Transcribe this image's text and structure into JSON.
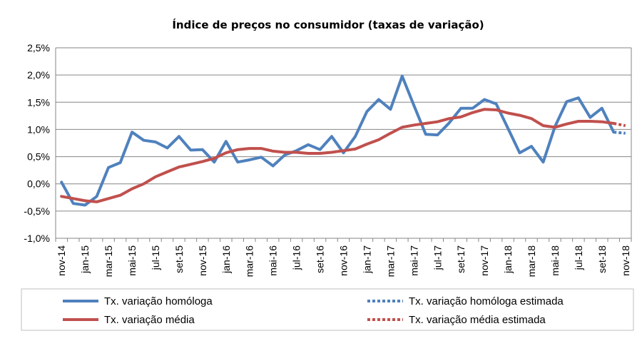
{
  "chart_data": {
    "type": "line",
    "title": "Índice de preços no consumidor  (taxas  de variação)",
    "xlabel": "",
    "ylabel": "",
    "ylim": [
      -1.0,
      2.5
    ],
    "y_ticks": [
      "2,5%",
      "2,0%",
      "1,5%",
      "1,0%",
      "0,5%",
      "0,0%",
      "-0,5%",
      "-1,0%"
    ],
    "y_tick_values": [
      2.5,
      2.0,
      1.5,
      1.0,
      0.5,
      0.0,
      -0.5,
      -1.0
    ],
    "grid": "horizontal",
    "legend_position": "bottom",
    "x": [
      "nov-14",
      "dez-14",
      "jan-15",
      "fev-15",
      "mar-15",
      "abr-15",
      "mai-15",
      "jun-15",
      "jul-15",
      "ago-15",
      "set-15",
      "out-15",
      "nov-15",
      "dez-15",
      "jan-16",
      "fev-16",
      "mar-16",
      "abr-16",
      "mai-16",
      "jun-16",
      "jul-16",
      "ago-16",
      "set-16",
      "out-16",
      "nov-16",
      "dez-16",
      "jan-17",
      "fev-17",
      "mar-17",
      "abr-17",
      "mai-17",
      "jun-17",
      "jul-17",
      "ago-17",
      "set-17",
      "out-17",
      "nov-17",
      "dez-17",
      "jan-18",
      "fev-18",
      "mar-18",
      "abr-18",
      "mai-18",
      "jun-18",
      "jul-18",
      "ago-18",
      "set-18",
      "out-18",
      "nov-18"
    ],
    "x_tick_labels": [
      "nov-14",
      "jan-15",
      "mar-15",
      "mai-15",
      "jul-15",
      "set-15",
      "nov-15",
      "jan-16",
      "mar-16",
      "mai-16",
      "jul-16",
      "set-16",
      "nov-16",
      "jan-17",
      "mar-17",
      "mai-17",
      "jul-17",
      "set-17",
      "nov-17",
      "jan-18",
      "mar-18",
      "mai-18",
      "jul-18",
      "set-18",
      "nov-18"
    ],
    "series": [
      {
        "name": "Tx. variação homóloga",
        "color": "#4f81bd",
        "style": "solid",
        "values": [
          0.03,
          -0.36,
          -0.39,
          -0.23,
          0.3,
          0.39,
          0.95,
          0.8,
          0.77,
          0.66,
          0.87,
          0.62,
          0.63,
          0.4,
          0.78,
          0.4,
          0.44,
          0.49,
          0.33,
          0.53,
          0.61,
          0.72,
          0.63,
          0.87,
          0.57,
          0.87,
          1.33,
          1.55,
          1.37,
          1.98,
          1.44,
          0.91,
          0.9,
          1.12,
          1.39,
          1.39,
          1.55,
          1.47,
          1.02,
          0.57,
          0.69,
          0.4,
          1.05,
          1.51,
          1.58,
          1.22,
          1.39,
          0.95,
          null
        ]
      },
      {
        "name": "Tx. variação homóloga estimada",
        "color": "#4f81bd",
        "style": "dotted",
        "values": [
          null,
          null,
          null,
          null,
          null,
          null,
          null,
          null,
          null,
          null,
          null,
          null,
          null,
          null,
          null,
          null,
          null,
          null,
          null,
          null,
          null,
          null,
          null,
          null,
          null,
          null,
          null,
          null,
          null,
          null,
          null,
          null,
          null,
          null,
          null,
          null,
          null,
          null,
          null,
          null,
          null,
          null,
          null,
          null,
          null,
          null,
          null,
          0.95,
          0.93
        ]
      },
      {
        "name": "Tx. variação média",
        "color": "#c0504d",
        "style": "solid",
        "values": [
          -0.23,
          -0.27,
          -0.31,
          -0.33,
          -0.27,
          -0.21,
          -0.09,
          0.0,
          0.13,
          0.22,
          0.31,
          0.36,
          0.41,
          0.47,
          0.57,
          0.63,
          0.65,
          0.65,
          0.6,
          0.58,
          0.58,
          0.56,
          0.56,
          0.58,
          0.61,
          0.64,
          0.73,
          0.81,
          0.93,
          1.04,
          1.08,
          1.11,
          1.14,
          1.2,
          1.23,
          1.31,
          1.37,
          1.36,
          1.3,
          1.26,
          1.2,
          1.07,
          1.04,
          1.1,
          1.15,
          1.15,
          1.14,
          1.11,
          null
        ]
      },
      {
        "name": "Tx. variação média  estimada",
        "color": "#c0504d",
        "style": "dotted",
        "values": [
          null,
          null,
          null,
          null,
          null,
          null,
          null,
          null,
          null,
          null,
          null,
          null,
          null,
          null,
          null,
          null,
          null,
          null,
          null,
          null,
          null,
          null,
          null,
          null,
          null,
          null,
          null,
          null,
          null,
          null,
          null,
          null,
          null,
          null,
          null,
          null,
          null,
          null,
          null,
          null,
          null,
          null,
          null,
          null,
          null,
          null,
          null,
          1.11,
          1.07
        ]
      }
    ],
    "legend": [
      {
        "label": "Tx. variação homóloga",
        "color": "#4f81bd",
        "style": "solid"
      },
      {
        "label": "Tx. variação homóloga estimada",
        "color": "#4f81bd",
        "style": "dotted"
      },
      {
        "label": "Tx. variação média",
        "color": "#c0504d",
        "style": "solid"
      },
      {
        "label": "Tx. variação média  estimada",
        "color": "#c0504d",
        "style": "dotted"
      }
    ]
  }
}
